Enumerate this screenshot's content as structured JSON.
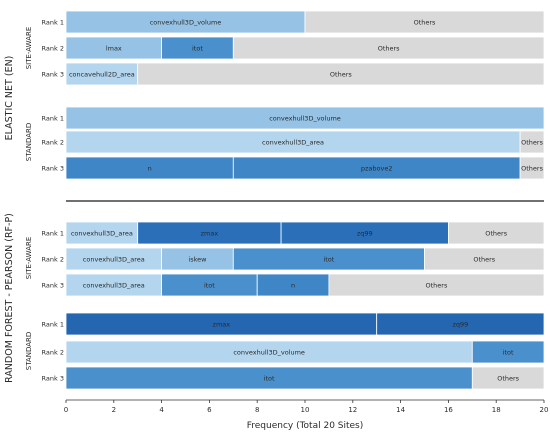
{
  "chart_data": {
    "type": "bar",
    "orientation": "horizontal-stacked",
    "xlabel": "Frequency (Total 20 Sites)",
    "xlim": [
      0,
      20
    ],
    "xticks": [
      0,
      2,
      4,
      6,
      8,
      10,
      12,
      14,
      16,
      18,
      20
    ],
    "grid": false,
    "colors": {
      "light": "#96c3e5",
      "lighter": "#b3d5ee",
      "medium": "#4a90cc",
      "mediumAlt": "#3e86c6",
      "dark": "#2a6fb8",
      "darkAlt": "#2566b0",
      "others": "#d9d9d9",
      "text": "#2b2b2b",
      "separator": "#1a1a1a"
    },
    "groups": [
      {
        "label": "ELASTIC NET (EN)",
        "panels": [
          {
            "label": "SITE-AWARE",
            "rows": [
              {
                "rank": "Rank 1",
                "segments": [
                  {
                    "label": "convexhull3D_volume",
                    "value": 10,
                    "color": "light"
                  },
                  {
                    "label": "Others",
                    "value": 10,
                    "color": "others"
                  }
                ]
              },
              {
                "rank": "Rank 2",
                "segments": [
                  {
                    "label": "lmax",
                    "value": 4,
                    "color": "light"
                  },
                  {
                    "label": "itot",
                    "value": 3,
                    "color": "medium"
                  },
                  {
                    "label": "Others",
                    "value": 13,
                    "color": "others"
                  }
                ]
              },
              {
                "rank": "Rank 3",
                "segments": [
                  {
                    "label": "concavehull2D_area",
                    "value": 3,
                    "color": "lighter"
                  },
                  {
                    "label": "Others",
                    "value": 17,
                    "color": "others"
                  }
                ]
              }
            ]
          },
          {
            "label": "STANDARD",
            "rows": [
              {
                "rank": "Rank 1",
                "segments": [
                  {
                    "label": "convexhull3D_volume",
                    "value": 20,
                    "color": "light"
                  }
                ]
              },
              {
                "rank": "Rank 2",
                "segments": [
                  {
                    "label": "convexhull3D_area",
                    "value": 19,
                    "color": "lighter"
                  },
                  {
                    "label": "Others",
                    "value": 1,
                    "color": "others"
                  }
                ]
              },
              {
                "rank": "Rank 3",
                "segments": [
                  {
                    "label": "n",
                    "value": 7,
                    "color": "mediumAlt"
                  },
                  {
                    "label": "pzabove2",
                    "value": 12,
                    "color": "mediumAlt"
                  },
                  {
                    "label": "Others",
                    "value": 1,
                    "color": "others"
                  }
                ]
              }
            ]
          }
        ]
      },
      {
        "label": "RANDOM FOREST - PEARSON (RF-P)",
        "panels": [
          {
            "label": "SITE-AWARE",
            "rows": [
              {
                "rank": "Rank 1",
                "segments": [
                  {
                    "label": "convexhull3D_area",
                    "value": 3,
                    "color": "lighter"
                  },
                  {
                    "label": "zmax",
                    "value": 6,
                    "color": "dark"
                  },
                  {
                    "label": "zq99",
                    "value": 7,
                    "color": "dark"
                  },
                  {
                    "label": "Others",
                    "value": 4,
                    "color": "others"
                  }
                ]
              },
              {
                "rank": "Rank 2",
                "segments": [
                  {
                    "label": "convexhull3D_area",
                    "value": 4,
                    "color": "lighter"
                  },
                  {
                    "label": "iskew",
                    "value": 3,
                    "color": "light"
                  },
                  {
                    "label": "itot",
                    "value": 8,
                    "color": "medium"
                  },
                  {
                    "label": "Others",
                    "value": 5,
                    "color": "others"
                  }
                ]
              },
              {
                "rank": "Rank 3",
                "segments": [
                  {
                    "label": "convexhull3D_area",
                    "value": 4,
                    "color": "lighter"
                  },
                  {
                    "label": "itot",
                    "value": 4,
                    "color": "medium"
                  },
                  {
                    "label": "n",
                    "value": 3,
                    "color": "mediumAlt"
                  },
                  {
                    "label": "Others",
                    "value": 9,
                    "color": "others"
                  }
                ]
              }
            ]
          },
          {
            "label": "STANDARD",
            "rows": [
              {
                "rank": "Rank 1",
                "segments": [
                  {
                    "label": "zmax",
                    "value": 13,
                    "color": "darkAlt"
                  },
                  {
                    "label": "zq99",
                    "value": 7,
                    "color": "darkAlt"
                  }
                ]
              },
              {
                "rank": "Rank 2",
                "segments": [
                  {
                    "label": "convexhull3D_volume",
                    "value": 17,
                    "color": "lighter"
                  },
                  {
                    "label": "itot",
                    "value": 3,
                    "color": "medium"
                  }
                ]
              },
              {
                "rank": "Rank 3",
                "segments": [
                  {
                    "label": "itot",
                    "value": 17,
                    "color": "medium"
                  },
                  {
                    "label": "Others",
                    "value": 3,
                    "color": "others"
                  }
                ]
              }
            ]
          }
        ]
      }
    ]
  }
}
